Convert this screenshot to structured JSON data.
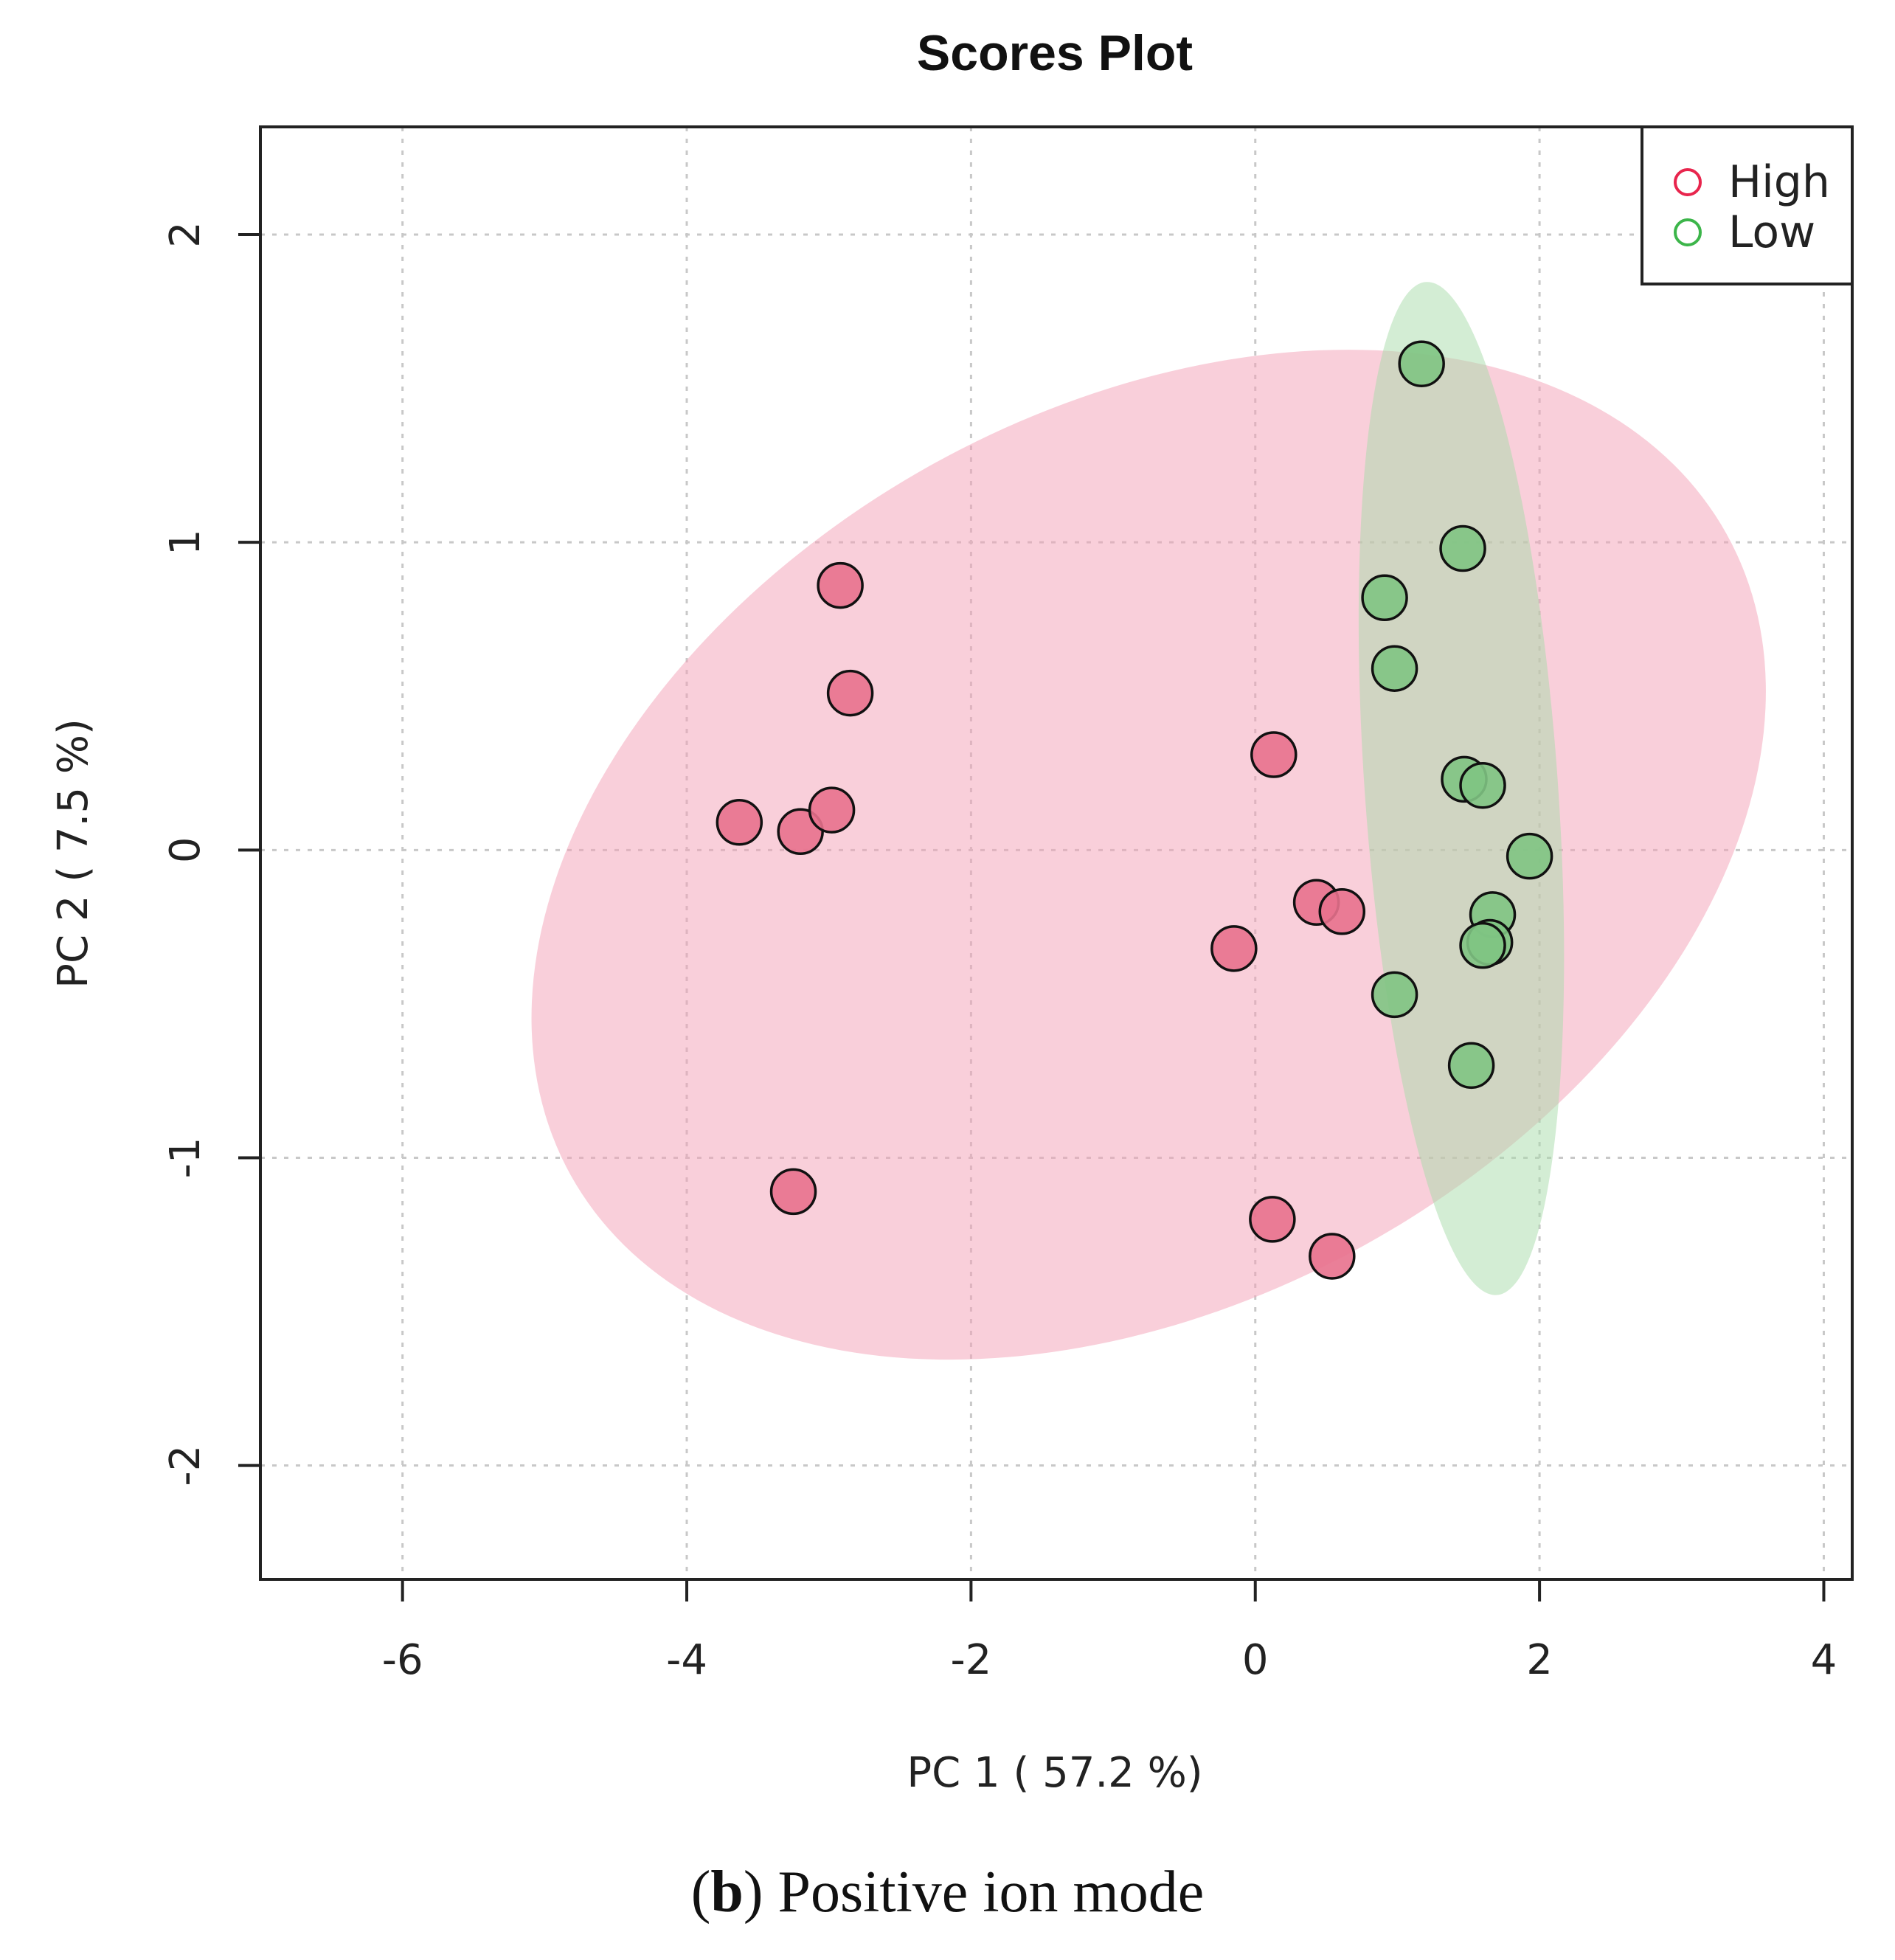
{
  "chart_data": {
    "type": "scatter",
    "title": "Scores Plot",
    "xlabel": "PC 1 ( 57.2 %)",
    "ylabel": "PC 2 ( 7.5 %)",
    "xlim": [
      -7,
      4.2
    ],
    "ylim": [
      -2.37,
      2.35
    ],
    "x_ticks": [
      -6,
      -4,
      -2,
      0,
      2,
      4
    ],
    "y_ticks": [
      -2,
      -1,
      0,
      1,
      2
    ],
    "x_tick_labels": [
      "-6",
      "-4",
      "-2",
      "0",
      "2",
      "4"
    ],
    "y_tick_labels": [
      "-2",
      "-1",
      "0",
      "1",
      "2"
    ],
    "grid": true,
    "legend_position": "top-right",
    "series": [
      {
        "name": "High",
        "color": "#e8718d",
        "marker_legend_color": "#e8254d",
        "ellipse": {
          "center": [
            -0.75,
            -0.015
          ],
          "rx": 4.65,
          "ry": 1.45,
          "angle_deg": -29,
          "color": "#f4a0b6",
          "opacity": 0.5
        },
        "points": [
          {
            "x": -2.92,
            "y": 0.86
          },
          {
            "x": -2.85,
            "y": 0.51
          },
          {
            "x": -3.63,
            "y": 0.09
          },
          {
            "x": -3.2,
            "y": 0.06
          },
          {
            "x": -2.98,
            "y": 0.13
          },
          {
            "x": -3.25,
            "y": -1.11
          },
          {
            "x": 0.13,
            "y": 0.31
          },
          {
            "x": 0.43,
            "y": -0.17
          },
          {
            "x": 0.61,
            "y": -0.2
          },
          {
            "x": -0.15,
            "y": -0.32
          },
          {
            "x": 0.12,
            "y": -1.2
          },
          {
            "x": 0.54,
            "y": -1.32
          }
        ]
      },
      {
        "name": "Low",
        "color": "#7fc483",
        "marker_legend_color": "#3cb54a",
        "ellipse": {
          "center": [
            1.45,
            0.2
          ],
          "rx": 0.68,
          "ry": 1.65,
          "angle_deg": -4,
          "color": "#a8dbaa",
          "opacity": 0.5
        },
        "points": [
          {
            "x": 1.17,
            "y": 1.58
          },
          {
            "x": 1.46,
            "y": 0.98
          },
          {
            "x": 0.91,
            "y": 0.82
          },
          {
            "x": 0.98,
            "y": 0.59
          },
          {
            "x": 1.47,
            "y": 0.23
          },
          {
            "x": 1.6,
            "y": 0.21
          },
          {
            "x": 1.93,
            "y": -0.02
          },
          {
            "x": 1.67,
            "y": -0.21
          },
          {
            "x": 1.65,
            "y": -0.3
          },
          {
            "x": 1.6,
            "y": -0.31
          },
          {
            "x": 0.98,
            "y": -0.47
          },
          {
            "x": 1.52,
            "y": -0.7
          }
        ]
      }
    ]
  },
  "caption": {
    "label": "(b)",
    "label_letter": "b",
    "text": " Positive ion mode"
  }
}
